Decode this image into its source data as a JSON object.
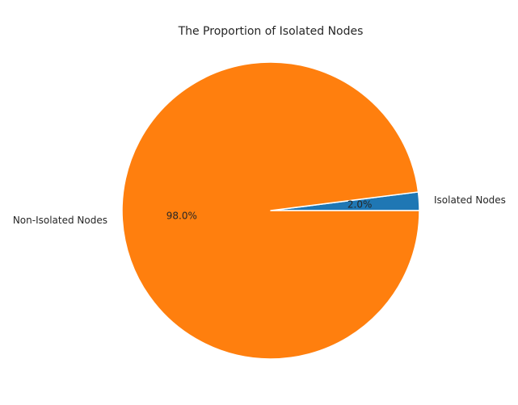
{
  "chart_data": {
    "type": "pie",
    "title": "The Proportion of Isolated Nodes",
    "labels": [
      "Isolated Nodes",
      "Non-Isolated Nodes"
    ],
    "values": [
      2.0,
      98.0
    ],
    "percent_labels": [
      "2.0%",
      "98.0%"
    ],
    "colors": [
      "#1f77b4",
      "#ff7f0e"
    ],
    "start_angle_deg": 0,
    "direction": "counterclockwise",
    "edge_color": "#ffffff",
    "legend": false
  }
}
